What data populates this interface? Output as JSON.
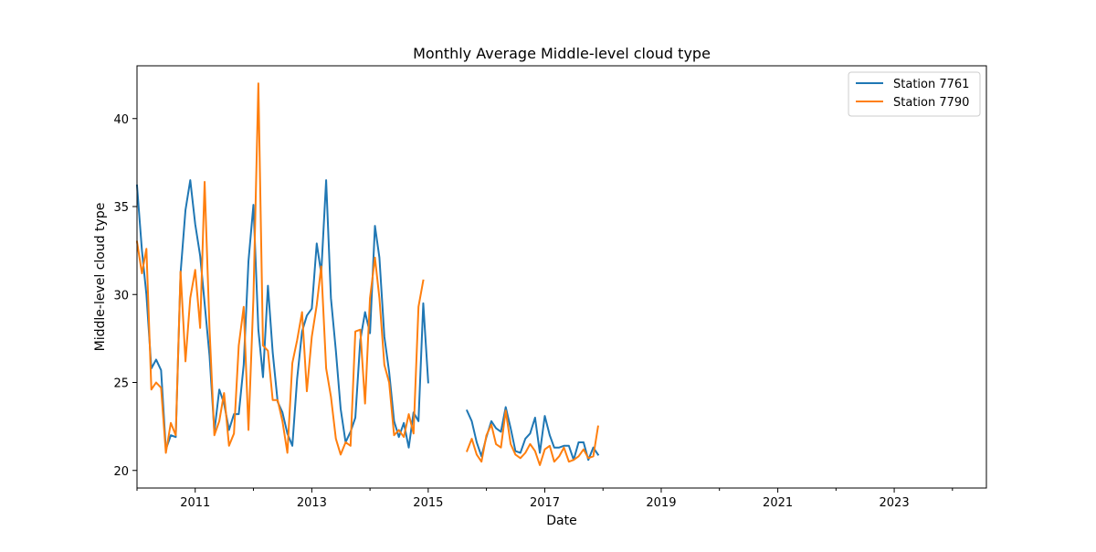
{
  "chart_data": {
    "type": "line",
    "title": "Monthly Average Middle-level cloud type",
    "xlabel": "Date",
    "ylabel": "Middle-level cloud type",
    "xlim": [
      "2010-01-01",
      "2024-08-01"
    ],
    "ylim": [
      19,
      43
    ],
    "x_ticks": [
      "2011",
      "2013",
      "2015",
      "2017",
      "2019",
      "2021",
      "2023"
    ],
    "y_ticks": [
      20,
      25,
      30,
      35,
      40
    ],
    "grid": false,
    "legend_position": "top-right",
    "series": [
      {
        "name": "Station 7761",
        "color": "#1f77b4",
        "points": [
          [
            "2010-01",
            36.2
          ],
          [
            "2010-02",
            32.5
          ],
          [
            "2010-03",
            30.0
          ],
          [
            "2010-04",
            25.8
          ],
          [
            "2010-05",
            26.3
          ],
          [
            "2010-06",
            25.7
          ],
          [
            "2010-07",
            21.2
          ],
          [
            "2010-08",
            22.0
          ],
          [
            "2010-09",
            21.9
          ],
          [
            "2010-10",
            31.2
          ],
          [
            "2010-11",
            34.8
          ],
          [
            "2010-12",
            36.5
          ],
          [
            "2011-01",
            34.0
          ],
          [
            "2011-02",
            32.2
          ],
          [
            "2011-03",
            29.5
          ],
          [
            "2011-04",
            26.5
          ],
          [
            "2011-05",
            22.2
          ],
          [
            "2011-06",
            24.6
          ],
          [
            "2011-07",
            23.8
          ],
          [
            "2011-08",
            22.3
          ],
          [
            "2011-09",
            23.2
          ],
          [
            "2011-10",
            23.2
          ],
          [
            "2011-11",
            26.0
          ],
          [
            "2011-12",
            31.9
          ],
          [
            "2012-01",
            35.1
          ],
          [
            "2012-02",
            28.0
          ],
          [
            "2012-03",
            25.3
          ],
          [
            "2012-04",
            30.5
          ],
          [
            "2012-05",
            26.7
          ],
          [
            "2012-06",
            23.9
          ],
          [
            "2012-07",
            23.3
          ],
          [
            "2012-08",
            22.1
          ],
          [
            "2012-09",
            21.4
          ],
          [
            "2012-10",
            25.2
          ],
          [
            "2012-11",
            27.9
          ],
          [
            "2012-12",
            28.8
          ],
          [
            "2013-01",
            29.2
          ],
          [
            "2013-02",
            32.9
          ],
          [
            "2013-03",
            31.2
          ],
          [
            "2013-04",
            36.5
          ],
          [
            "2013-05",
            29.8
          ],
          [
            "2013-06",
            26.8
          ],
          [
            "2013-07",
            23.5
          ],
          [
            "2013-08",
            21.6
          ],
          [
            "2013-09",
            22.2
          ],
          [
            "2013-10",
            23.0
          ],
          [
            "2013-11",
            27.4
          ],
          [
            "2013-12",
            29.0
          ],
          [
            "2014-01",
            27.8
          ],
          [
            "2014-02",
            33.9
          ],
          [
            "2014-03",
            32.1
          ],
          [
            "2014-04",
            27.6
          ],
          [
            "2014-05",
            25.6
          ],
          [
            "2014-06",
            22.8
          ],
          [
            "2014-07",
            21.9
          ],
          [
            "2014-08",
            22.7
          ],
          [
            "2014-09",
            21.3
          ],
          [
            "2014-10",
            23.3
          ],
          [
            "2014-11",
            22.8
          ],
          [
            "2014-12",
            29.5
          ],
          [
            "2015-01",
            25.0
          ],
          null,
          [
            "2015-09",
            23.4
          ],
          [
            "2015-10",
            22.8
          ],
          [
            "2015-11",
            21.6
          ],
          [
            "2015-12",
            20.8
          ],
          [
            "2016-01",
            21.9
          ],
          [
            "2016-02",
            22.8
          ],
          [
            "2016-03",
            22.4
          ],
          [
            "2016-04",
            22.2
          ],
          [
            "2016-05",
            23.6
          ],
          [
            "2016-06",
            22.4
          ],
          [
            "2016-07",
            21.1
          ],
          [
            "2016-08",
            21.0
          ],
          [
            "2016-09",
            21.8
          ],
          [
            "2016-10",
            22.1
          ],
          [
            "2016-11",
            23.0
          ],
          [
            "2016-12",
            21.0
          ],
          [
            "2017-01",
            23.1
          ],
          [
            "2017-02",
            22.0
          ],
          [
            "2017-03",
            21.3
          ],
          [
            "2017-04",
            21.3
          ],
          [
            "2017-05",
            21.4
          ],
          [
            "2017-06",
            21.4
          ],
          [
            "2017-07",
            20.6
          ],
          [
            "2017-08",
            21.6
          ],
          [
            "2017-09",
            21.6
          ],
          [
            "2017-10",
            20.6
          ],
          [
            "2017-11",
            21.3
          ],
          [
            "2017-12",
            20.9
          ]
        ]
      },
      {
        "name": "Station 7790",
        "color": "#ff7f0e",
        "points": [
          [
            "2010-01",
            33.0
          ],
          [
            "2010-02",
            31.2
          ],
          [
            "2010-03",
            32.6
          ],
          [
            "2010-04",
            24.6
          ],
          [
            "2010-05",
            25.0
          ],
          [
            "2010-06",
            24.7
          ],
          [
            "2010-07",
            21.0
          ],
          [
            "2010-08",
            22.7
          ],
          [
            "2010-09",
            22.0
          ],
          [
            "2010-10",
            31.3
          ],
          [
            "2010-11",
            26.2
          ],
          [
            "2010-12",
            29.8
          ],
          [
            "2011-01",
            31.4
          ],
          [
            "2011-02",
            28.1
          ],
          [
            "2011-03",
            36.4
          ],
          [
            "2011-04",
            28.0
          ],
          [
            "2011-05",
            22.0
          ],
          [
            "2011-06",
            22.8
          ],
          [
            "2011-07",
            24.4
          ],
          [
            "2011-08",
            21.4
          ],
          [
            "2011-09",
            22.1
          ],
          [
            "2011-10",
            27.1
          ],
          [
            "2011-11",
            29.3
          ],
          [
            "2011-12",
            22.3
          ],
          [
            "2012-01",
            29.8
          ],
          [
            "2012-02",
            42.0
          ],
          [
            "2012-03",
            27.1
          ],
          [
            "2012-04",
            26.8
          ],
          [
            "2012-05",
            24.0
          ],
          [
            "2012-06",
            24.0
          ],
          [
            "2012-07",
            22.8
          ],
          [
            "2012-08",
            21.0
          ],
          [
            "2012-09",
            26.1
          ],
          [
            "2012-10",
            27.4
          ],
          [
            "2012-11",
            29.0
          ],
          [
            "2012-12",
            24.5
          ],
          [
            "2013-01",
            27.6
          ],
          [
            "2013-02",
            29.4
          ],
          [
            "2013-03",
            31.6
          ],
          [
            "2013-04",
            25.8
          ],
          [
            "2013-05",
            24.2
          ],
          [
            "2013-06",
            21.8
          ],
          [
            "2013-07",
            20.9
          ],
          [
            "2013-08",
            21.6
          ],
          [
            "2013-09",
            21.4
          ],
          [
            "2013-10",
            27.9
          ],
          [
            "2013-11",
            28.0
          ],
          [
            "2013-12",
            23.8
          ],
          [
            "2014-01",
            29.8
          ],
          [
            "2014-02",
            32.1
          ],
          [
            "2014-03",
            29.8
          ],
          [
            "2014-04",
            26.0
          ],
          [
            "2014-05",
            25.0
          ],
          [
            "2014-06",
            22.0
          ],
          [
            "2014-07",
            22.3
          ],
          [
            "2014-08",
            21.9
          ],
          [
            "2014-09",
            23.2
          ],
          [
            "2014-10",
            22.1
          ],
          [
            "2014-11",
            29.3
          ],
          [
            "2014-12",
            30.8
          ],
          null,
          [
            "2015-09",
            21.1
          ],
          [
            "2015-10",
            21.8
          ],
          [
            "2015-11",
            20.9
          ],
          [
            "2015-12",
            20.5
          ],
          [
            "2016-01",
            22.0
          ],
          [
            "2016-02",
            22.6
          ],
          [
            "2016-03",
            21.5
          ],
          [
            "2016-04",
            21.3
          ],
          [
            "2016-05",
            23.4
          ],
          [
            "2016-06",
            21.5
          ],
          [
            "2016-07",
            20.9
          ],
          [
            "2016-08",
            20.7
          ],
          [
            "2016-09",
            21.0
          ],
          [
            "2016-10",
            21.5
          ],
          [
            "2016-11",
            21.1
          ],
          [
            "2016-12",
            20.3
          ],
          [
            "2017-01",
            21.2
          ],
          [
            "2017-02",
            21.4
          ],
          [
            "2017-03",
            20.5
          ],
          [
            "2017-04",
            20.8
          ],
          [
            "2017-05",
            21.3
          ],
          [
            "2017-06",
            20.5
          ],
          [
            "2017-07",
            20.6
          ],
          [
            "2017-08",
            20.8
          ],
          [
            "2017-09",
            21.2
          ],
          [
            "2017-10",
            20.7
          ],
          [
            "2017-11",
            20.8
          ],
          [
            "2017-12",
            22.5
          ]
        ]
      }
    ]
  }
}
